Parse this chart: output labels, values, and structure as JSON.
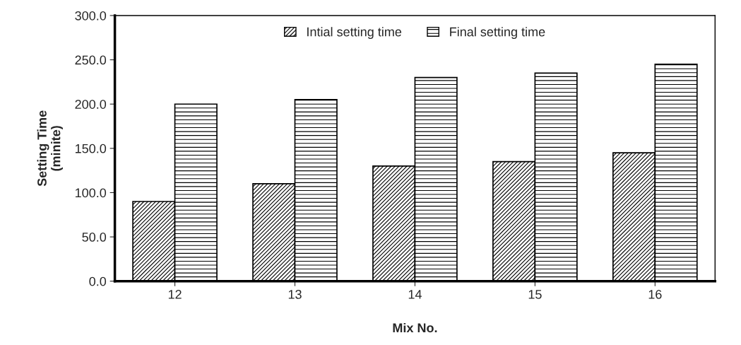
{
  "chart_data": {
    "type": "bar",
    "xlabel": "Mix No.",
    "ylabel": "Setting Time\n(minite)",
    "categories": [
      "12",
      "13",
      "14",
      "15",
      "16"
    ],
    "series": [
      {
        "name": "Intial setting time",
        "color": "#000000",
        "values": [
          90,
          110,
          130,
          135,
          145
        ]
      },
      {
        "name": "Final setting time",
        "color": "#000000",
        "values": [
          200,
          205,
          230,
          235,
          245
        ]
      }
    ],
    "ylim": [
      0,
      300
    ],
    "yticks": [
      {
        "value": 0,
        "label": "0.0"
      },
      {
        "value": 50,
        "label": "50.0"
      },
      {
        "value": 100,
        "label": "100.0"
      },
      {
        "value": 150,
        "label": "150.0"
      },
      {
        "value": 200,
        "label": "200.0"
      },
      {
        "value": 250,
        "label": "250.0"
      },
      {
        "value": 300,
        "label": "300.0"
      }
    ],
    "legend": "top"
  }
}
